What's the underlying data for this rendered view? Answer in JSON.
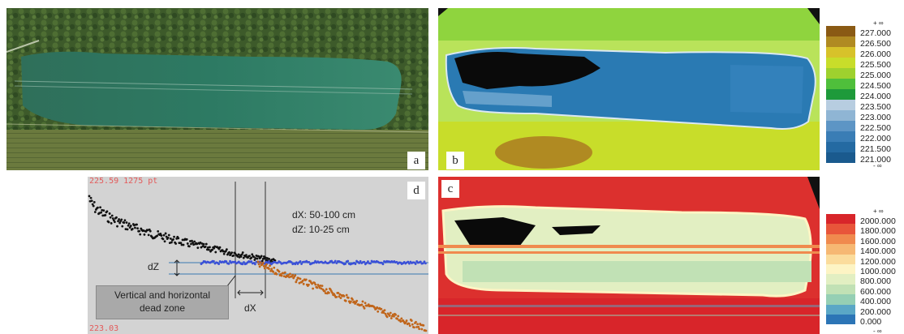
{
  "panels": {
    "a": {
      "letter": "a"
    },
    "b": {
      "letter": "b",
      "legend": {
        "top": "+ ∞",
        "bottom": "- ∞",
        "entries": [
          {
            "label": "227.000",
            "color": "#8a5a14"
          },
          {
            "label": "226.500",
            "color": "#b08a22"
          },
          {
            "label": "226.000",
            "color": "#d7c22a"
          },
          {
            "label": "225.500",
            "color": "#c8dd2a"
          },
          {
            "label": "225.000",
            "color": "#9ed12e"
          },
          {
            "label": "224.500",
            "color": "#4fbf3b"
          },
          {
            "label": "224.000",
            "color": "#1e9a3a"
          },
          {
            "label": "223.500",
            "color": "#b7cde0"
          },
          {
            "label": "223.000",
            "color": "#8fb5d4"
          },
          {
            "label": "222.500",
            "color": "#5d95c5"
          },
          {
            "label": "222.000",
            "color": "#3a7db5"
          },
          {
            "label": "221.500",
            "color": "#246aa2"
          },
          {
            "label": "221.000",
            "color": "#1a5a8e"
          }
        ]
      }
    },
    "c": {
      "letter": "c",
      "legend": {
        "top": "+ ∞",
        "bottom": "- ∞",
        "entries": [
          {
            "label": "2000.000",
            "color": "#d8252a"
          },
          {
            "label": "1800.000",
            "color": "#e8553a"
          },
          {
            "label": "1600.000",
            "color": "#f08a4e"
          },
          {
            "label": "1400.000",
            "color": "#f6b873"
          },
          {
            "label": "1200.000",
            "color": "#fbdc9c"
          },
          {
            "label": "1000.000",
            "color": "#fdf4c4"
          },
          {
            "label": "800.000",
            "color": "#e2efc2"
          },
          {
            "label": "600.000",
            "color": "#c1e1b5"
          },
          {
            "label": "400.000",
            "color": "#95cfb4"
          },
          {
            "label": "200.000",
            "color": "#5aa7c6"
          },
          {
            "label": "0.000",
            "color": "#2c75b6"
          }
        ]
      }
    },
    "d": {
      "letter": "d",
      "top_readout": "225.59 1275 pt",
      "bottom_readout": "223.03",
      "dx_range": "dX: 50-100 cm",
      "dz_range": "dZ: 10-25 cm",
      "dz_label": "dZ",
      "dx_label": "dX",
      "dead_zone_label_line1": "Vertical and horizontal",
      "dead_zone_label_line2": "dead zone",
      "colors": {
        "black_points": "#111111",
        "blue_points": "#3a4fd8",
        "orange_points": "#c0651a",
        "background": "#d3d3d3"
      }
    }
  }
}
